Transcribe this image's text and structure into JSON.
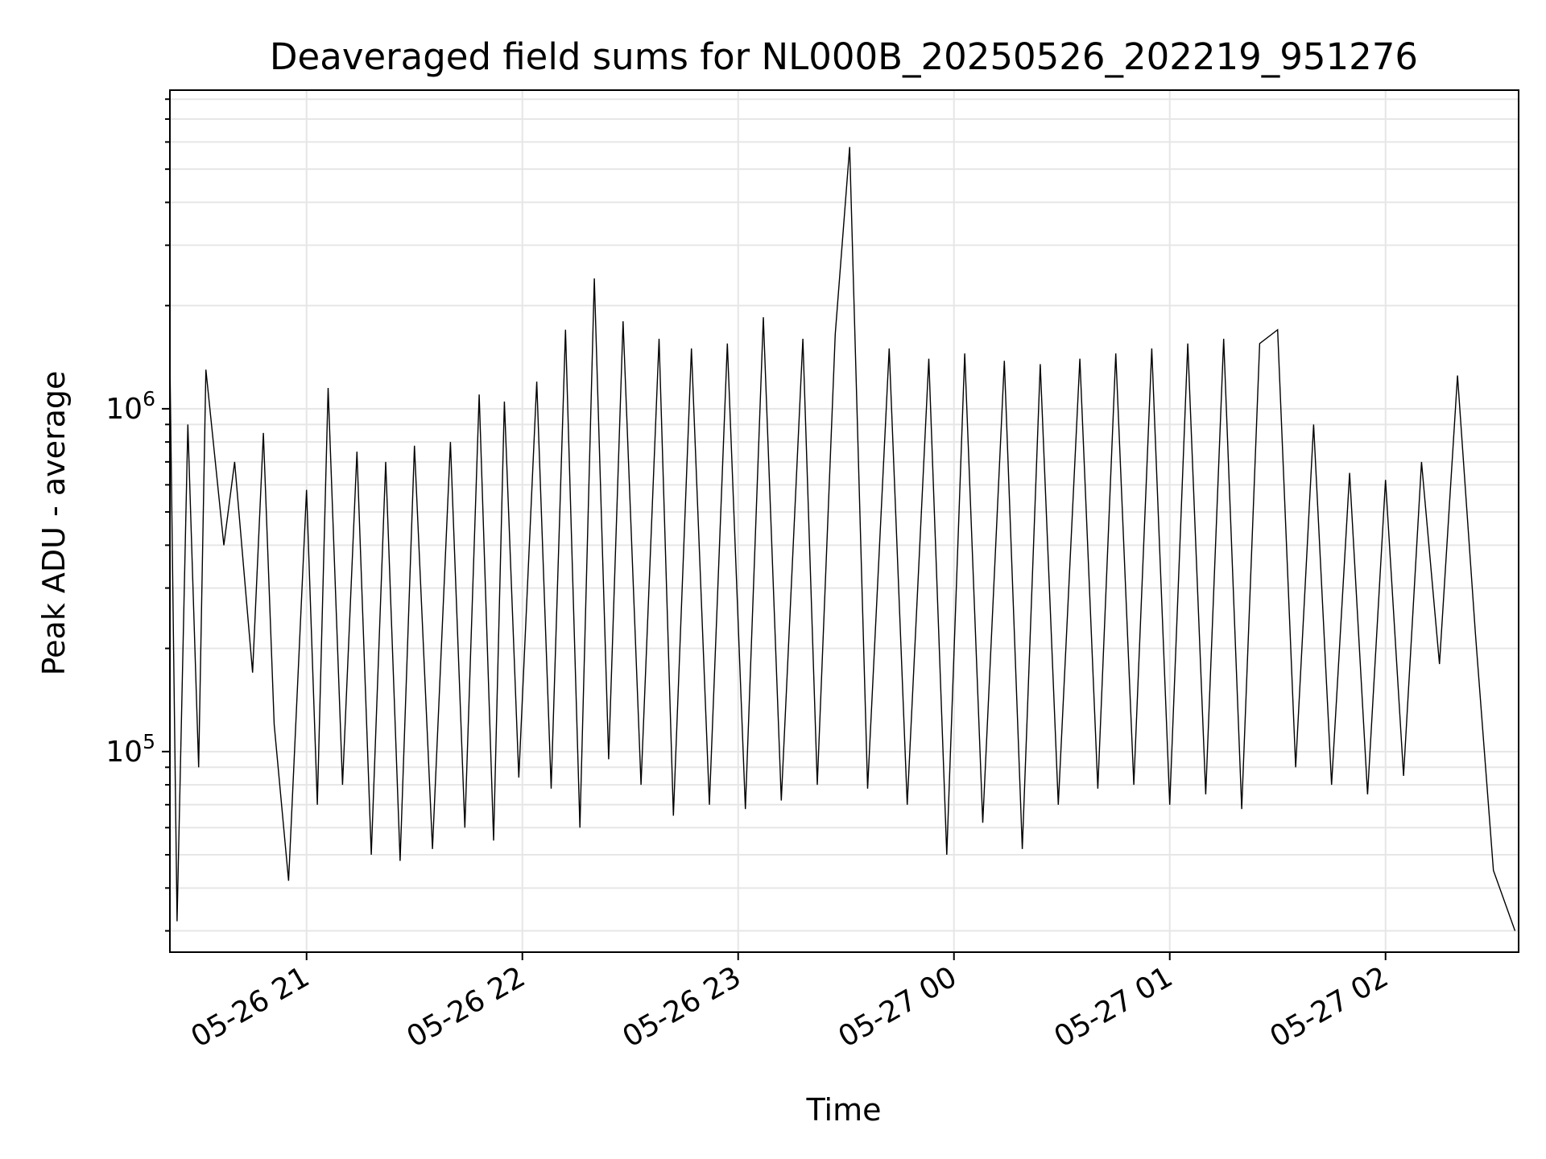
{
  "chart_data": {
    "type": "line",
    "title": "Deaveraged field sums for NL000B_20250526_202219_951276",
    "xlabel": "Time",
    "ylabel": "Peak ADU - average",
    "yscale": "log",
    "grid": true,
    "xlim": [
      "2025-05-26 20:22",
      "2025-05-27 02:37"
    ],
    "ylim": [
      26000,
      8500000
    ],
    "x_ticks": [
      "2025-05-26 21:00",
      "2025-05-26 22:00",
      "2025-05-26 23:00",
      "2025-05-27 00:00",
      "2025-05-27 01:00",
      "2025-05-27 02:00"
    ],
    "x_tick_labels": [
      "05-26 21",
      "05-26 22",
      "05-26 23",
      "05-27 00",
      "05-27 01",
      "05-27 02"
    ],
    "y_ticks": [
      100000,
      1000000
    ],
    "y_tick_labels": [
      {
        "base": "10",
        "exp": "5"
      },
      {
        "base": "10",
        "exp": "6"
      }
    ],
    "line_color": "#000000",
    "grid_color": "#e6e6e6",
    "series": [
      {
        "x": [
          "2025-05-26 20:22",
          "2025-05-26 20:24",
          "2025-05-26 20:27",
          "2025-05-26 20:30",
          "2025-05-26 20:32",
          "2025-05-26 20:37",
          "2025-05-26 20:40",
          "2025-05-26 20:45",
          "2025-05-26 20:48",
          "2025-05-26 20:51",
          "2025-05-26 20:55",
          "2025-05-26 21:00",
          "2025-05-26 21:03",
          "2025-05-26 21:06",
          "2025-05-26 21:10",
          "2025-05-26 21:14",
          "2025-05-26 21:18",
          "2025-05-26 21:22",
          "2025-05-26 21:26",
          "2025-05-26 21:30",
          "2025-05-26 21:35",
          "2025-05-26 21:40",
          "2025-05-26 21:44",
          "2025-05-26 21:48",
          "2025-05-26 21:52",
          "2025-05-26 21:55",
          "2025-05-26 21:59",
          "2025-05-26 22:04",
          "2025-05-26 22:08",
          "2025-05-26 22:12",
          "2025-05-26 22:16",
          "2025-05-26 22:20",
          "2025-05-26 22:24",
          "2025-05-26 22:28",
          "2025-05-26 22:33",
          "2025-05-26 22:38",
          "2025-05-26 22:42",
          "2025-05-26 22:47",
          "2025-05-26 22:52",
          "2025-05-26 22:57",
          "2025-05-26 23:02",
          "2025-05-26 23:07",
          "2025-05-26 23:12",
          "2025-05-26 23:18",
          "2025-05-26 23:22",
          "2025-05-26 23:27",
          "2025-05-26 23:31",
          "2025-05-26 23:36",
          "2025-05-26 23:42",
          "2025-05-26 23:47",
          "2025-05-26 23:53",
          "2025-05-26 23:58",
          "2025-05-27 00:03",
          "2025-05-27 00:08",
          "2025-05-27 00:14",
          "2025-05-27 00:19",
          "2025-05-27 00:24",
          "2025-05-27 00:29",
          "2025-05-27 00:35",
          "2025-05-27 00:40",
          "2025-05-27 00:45",
          "2025-05-27 00:50",
          "2025-05-27 00:55",
          "2025-05-27 01:00",
          "2025-05-27 01:05",
          "2025-05-27 01:10",
          "2025-05-27 01:15",
          "2025-05-27 01:20",
          "2025-05-27 01:25",
          "2025-05-27 01:30",
          "2025-05-27 01:35",
          "2025-05-27 01:40",
          "2025-05-27 01:45",
          "2025-05-27 01:50",
          "2025-05-27 01:55",
          "2025-05-27 02:00",
          "2025-05-27 02:05",
          "2025-05-27 02:10",
          "2025-05-27 02:15",
          "2025-05-27 02:20",
          "2025-05-27 02:25",
          "2025-05-27 02:30",
          "2025-05-27 02:36"
        ],
        "y": [
          1400000,
          32000,
          900000,
          90000,
          1300000,
          400000,
          700000,
          170000,
          850000,
          120000,
          42000,
          580000,
          70000,
          1150000,
          80000,
          750000,
          50000,
          700000,
          48000,
          780000,
          52000,
          800000,
          60000,
          1100000,
          55000,
          1050000,
          84000,
          1200000,
          78000,
          1700000,
          60000,
          2400000,
          95000,
          1800000,
          80000,
          1600000,
          65000,
          1500000,
          70000,
          1550000,
          68000,
          1850000,
          72000,
          1600000,
          80000,
          1650000,
          5800000,
          78000,
          1500000,
          70000,
          1400000,
          50000,
          1450000,
          62000,
          1380000,
          52000,
          1350000,
          70000,
          1400000,
          78000,
          1450000,
          80000,
          1500000,
          70000,
          1550000,
          75000,
          1600000,
          68000,
          1550000,
          1700000,
          90000,
          900000,
          80000,
          650000,
          75000,
          620000,
          85000,
          700000,
          180000,
          1250000,
          220000,
          45000,
          30000
        ]
      }
    ]
  }
}
